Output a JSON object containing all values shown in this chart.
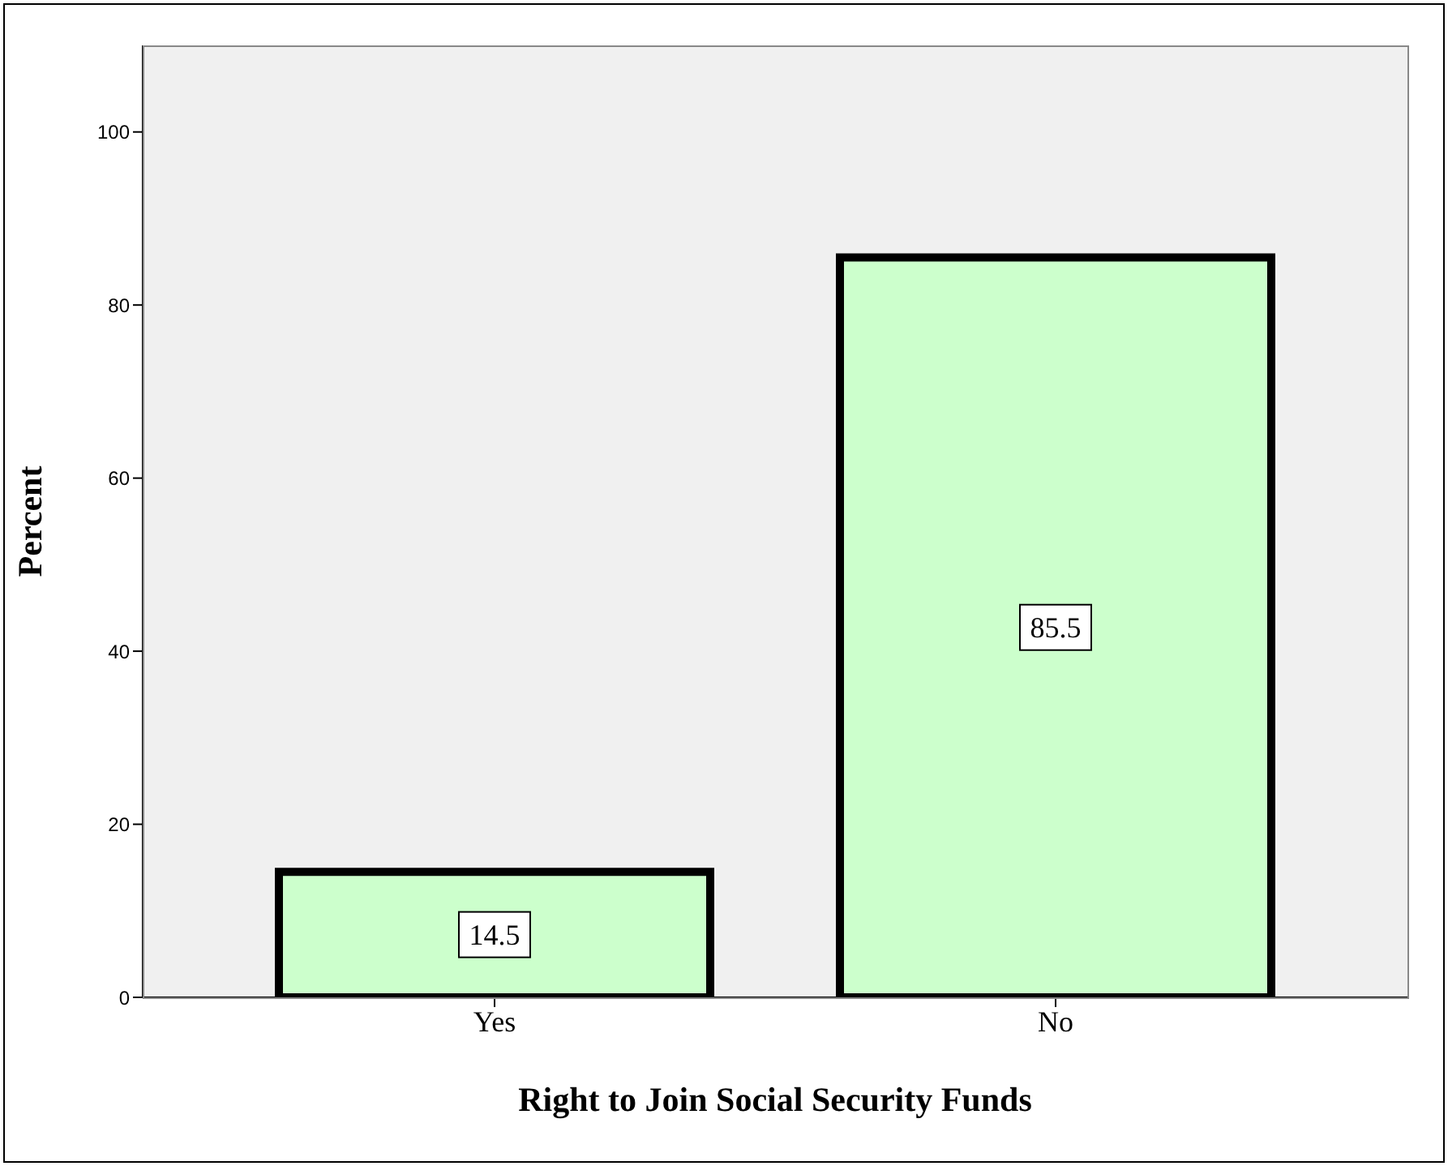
{
  "chart_data": {
    "type": "bar",
    "xlabel": "Right to Join Social Security Funds",
    "ylabel": "Percent",
    "categories": [
      "Yes",
      "No"
    ],
    "values": [
      14.5,
      85.5
    ],
    "color": "#ccffcc",
    "ylim": [
      0,
      110
    ],
    "yticks": [
      0,
      20,
      40,
      60,
      80,
      100
    ],
    "data_labels": true,
    "grid": false,
    "legend": false
  }
}
